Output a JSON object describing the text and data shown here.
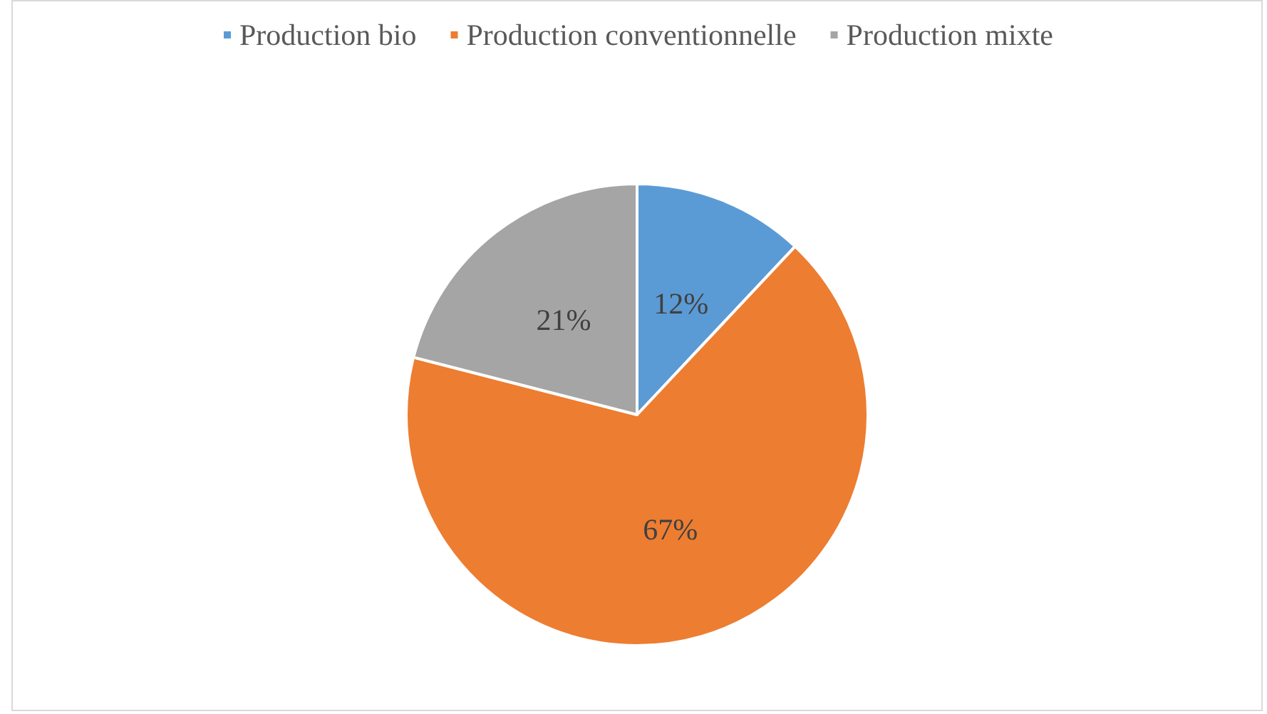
{
  "chart_data": {
    "type": "pie",
    "categories": [
      "Production bio",
      "Production conventionnelle",
      "Production mixte"
    ],
    "values": [
      12,
      67,
      21
    ],
    "colors": [
      "#5b9bd5",
      "#ed7d31",
      "#a5a5a5"
    ],
    "value_labels": [
      "12%",
      "67%",
      "21%"
    ],
    "legend": "top"
  }
}
